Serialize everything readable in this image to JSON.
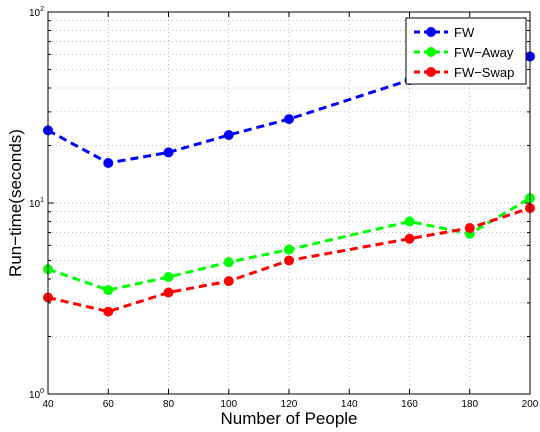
{
  "chart_data": {
    "type": "line",
    "xlabel": "Number of People",
    "ylabel": "Run−time(seconds)",
    "x": [
      40,
      60,
      80,
      100,
      120,
      160,
      180,
      200
    ],
    "xlim": [
      40,
      200
    ],
    "xticks": [
      40,
      60,
      80,
      100,
      120,
      140,
      160,
      180,
      200
    ],
    "ylim": [
      1,
      100
    ],
    "yscale": "log",
    "yticks": [
      {
        "value": 1,
        "base": "10",
        "exp": "0"
      },
      {
        "value": 10,
        "base": "10",
        "exp": "1"
      },
      {
        "value": 100,
        "base": "10",
        "exp": "2"
      }
    ],
    "grid": true,
    "legend_position": "top-right",
    "series": [
      {
        "name": "FW",
        "color": "#0000ff",
        "values": [
          24.0,
          16.2,
          18.4,
          22.7,
          27.5,
          44.0,
          50.0,
          58.5
        ]
      },
      {
        "name": "FW−Away",
        "color": "#00ff00",
        "values": [
          4.5,
          3.5,
          4.1,
          4.9,
          5.7,
          8.0,
          6.9,
          10.6
        ]
      },
      {
        "name": "FW−Swap",
        "color": "#ff0000",
        "values": [
          3.2,
          2.7,
          3.4,
          3.9,
          5.0,
          6.5,
          7.4,
          9.4
        ]
      }
    ]
  }
}
